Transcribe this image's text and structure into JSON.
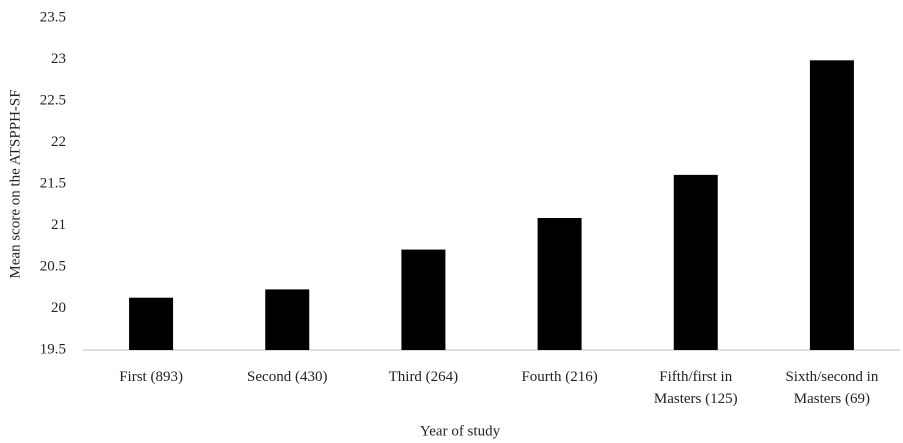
{
  "chart_data": {
    "type": "bar",
    "x_label": "Year of study",
    "y_label": "Mean score on the ATSPPH-SF",
    "categories": [
      "First (893)",
      "Second (430)",
      "Third (264)",
      "Fourth (216)",
      "Fifth/first in Masters (125)",
      "Sixth/second in Masters (69)"
    ],
    "values": [
      20.13,
      20.23,
      20.71,
      21.09,
      21.61,
      22.99
    ],
    "color": "#000000",
    "ylim": [
      19.5,
      23.5
    ],
    "yticks": [
      19.5,
      20,
      20.5,
      21,
      21.5,
      22,
      22.5,
      23,
      23.5
    ],
    "grid": false
  }
}
